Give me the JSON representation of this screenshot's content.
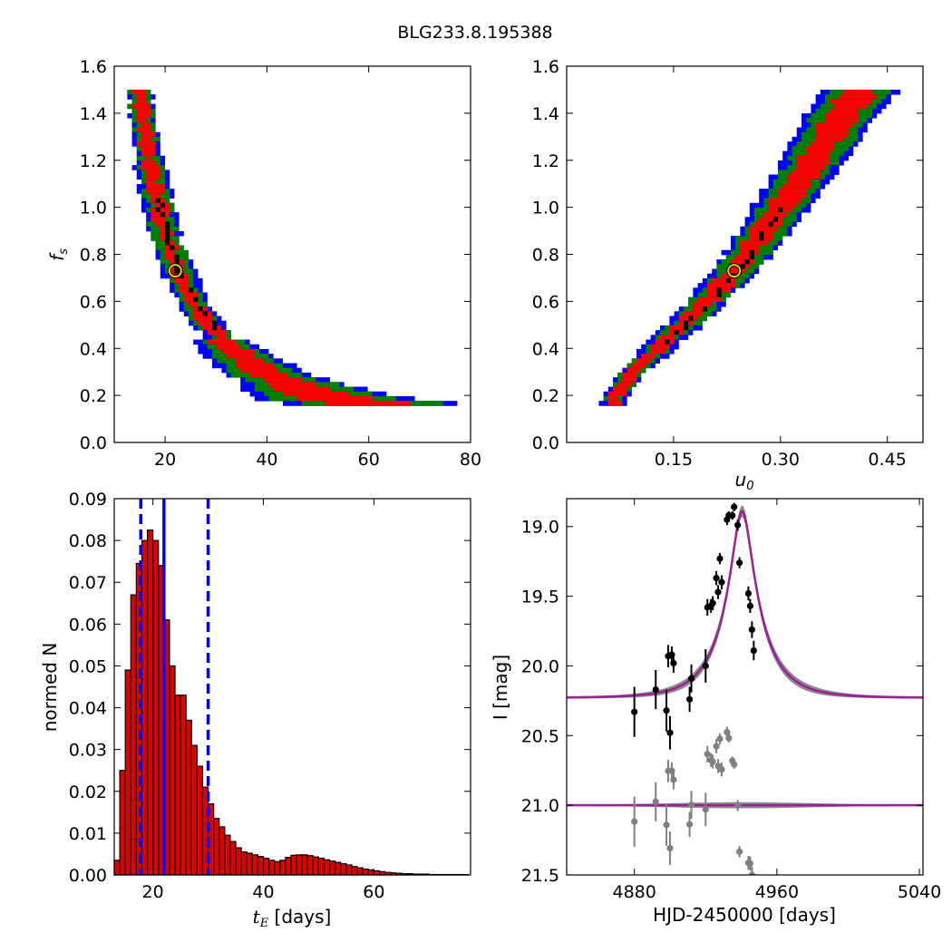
{
  "title": "BLG233.8.195388",
  "chart_data": [
    {
      "type": "heatmap",
      "panel": "top-left",
      "xlabel": "",
      "ylabel": "f_s",
      "xlim": [
        10,
        80
      ],
      "ylim": [
        0.0,
        1.6
      ],
      "xticks": [
        20,
        40,
        60,
        80
      ],
      "yticks": [
        0.0,
        0.2,
        0.4,
        0.6,
        0.8,
        1.0,
        1.2,
        1.4,
        1.6
      ],
      "tick_labels_x": [
        "20",
        "40",
        "60",
        "80"
      ],
      "tick_labels_y": [
        "0.0",
        "0.2",
        "0.4",
        "0.6",
        "0.8",
        "1.0",
        "1.2",
        "1.4",
        "1.6"
      ],
      "ridge_fs": [
        1.5,
        1.4,
        1.3,
        1.2,
        1.1,
        1.0,
        0.9,
        0.8,
        0.7,
        0.6,
        0.5,
        0.4,
        0.3,
        0.2,
        0.17
      ],
      "ridge_tE": [
        15.0,
        15.6,
        16.3,
        17.0,
        17.8,
        18.8,
        20.0,
        21.5,
        23.3,
        25.8,
        29.0,
        33.5,
        40.0,
        52.0,
        63.0
      ],
      "confidence_colors": [
        "#ff0000",
        "#008000",
        "#0000ff"
      ],
      "core_color": "#000000",
      "best_fit": {
        "x": 22,
        "y": 0.73
      },
      "grid": false
    },
    {
      "type": "heatmap",
      "panel": "top-right",
      "xlabel": "u_0",
      "ylabel": "",
      "xlim": [
        0.0,
        0.5
      ],
      "ylim": [
        0.0,
        1.6
      ],
      "xticks": [
        0.15,
        0.3,
        0.45
      ],
      "yticks": [
        0.0,
        0.2,
        0.4,
        0.6,
        0.8,
        1.0,
        1.2,
        1.4,
        1.6
      ],
      "tick_labels_x": [
        "0.15",
        "0.30",
        "0.45"
      ],
      "tick_labels_y": [
        "0.0",
        "0.2",
        "0.4",
        "0.6",
        "0.8",
        "1.0",
        "1.2",
        "1.4",
        "1.6"
      ],
      "ridge_fs": [
        0.17,
        0.3,
        0.5,
        0.73,
        1.0,
        1.2,
        1.4,
        1.5
      ],
      "ridge_u0": [
        0.063,
        0.09,
        0.16,
        0.235,
        0.3,
        0.345,
        0.385,
        0.41
      ],
      "confidence_colors": [
        "#ff0000",
        "#008000",
        "#0000ff"
      ],
      "core_color": "#000000",
      "best_fit": {
        "x": 0.235,
        "y": 0.73
      },
      "grid": false
    },
    {
      "type": "bar",
      "panel": "bottom-left",
      "xlabel": "t_E [days]",
      "ylabel": "normed N",
      "xlim": [
        13,
        77.5
      ],
      "ylim": [
        0.0,
        0.09
      ],
      "xticks": [
        20,
        40,
        60
      ],
      "yticks": [
        0.0,
        0.01,
        0.02,
        0.03,
        0.04,
        0.05,
        0.06,
        0.07,
        0.08,
        0.09
      ],
      "tick_labels_x": [
        "20",
        "40",
        "60"
      ],
      "tick_labels_y": [
        "0.00",
        "0.01",
        "0.02",
        "0.03",
        "0.04",
        "0.05",
        "0.06",
        "0.07",
        "0.08",
        "0.09"
      ],
      "bin_start": 13,
      "bin_width": 1,
      "values": [
        0.0035,
        0.025,
        0.049,
        0.067,
        0.0745,
        0.08,
        0.0825,
        0.08,
        0.074,
        0.061,
        0.05,
        0.043,
        0.043,
        0.037,
        0.031,
        0.026,
        0.021,
        0.017,
        0.0135,
        0.0115,
        0.0095,
        0.008,
        0.0065,
        0.0055,
        0.0052,
        0.0048,
        0.0044,
        0.004,
        0.0035,
        0.0032,
        0.0035,
        0.0042,
        0.0047,
        0.0048,
        0.0048,
        0.0046,
        0.0043,
        0.004,
        0.0036,
        0.0033,
        0.003,
        0.0027,
        0.0024,
        0.002,
        0.0017,
        0.0014,
        0.0012,
        0.001,
        0.0008,
        0.0006,
        0.0005,
        0.0004,
        0.0003,
        0.0003,
        0.0002,
        0.0002,
        0.0002,
        0.0001,
        0.0001,
        0.0001,
        0.0001,
        0.0001,
        0.0001,
        0.0001
      ],
      "bar_color": "#e00000",
      "median": 22,
      "interval": [
        17.8,
        30
      ],
      "line_color": "#0000ff",
      "grid": false
    },
    {
      "type": "line",
      "panel": "bottom-right",
      "xlabel": "HJD-2450000 [days]",
      "ylabel": "I [mag]",
      "xlim": [
        4842,
        5042
      ],
      "ylim": [
        21.5,
        18.8
      ],
      "y_inverted": true,
      "xticks": [
        4880,
        4960,
        5040
      ],
      "yticks": [
        19.0,
        19.5,
        20.0,
        20.5,
        21.0,
        21.5
      ],
      "tick_labels_x": [
        "4880",
        "4960",
        "5040"
      ],
      "tick_labels_y": [
        "19.0",
        "19.5",
        "20.0",
        "20.5",
        "21.0",
        "21.5"
      ],
      "model": {
        "t0": 4940.5,
        "tE": 22,
        "u0": 0.235,
        "fs": 0.73,
        "baseline_mag": 20.23,
        "color": "#9b1f9b"
      },
      "residual_baseline": 21.0,
      "data_points": [
        {
          "t": 4880,
          "mag": 20.33,
          "err": 0.18
        },
        {
          "t": 4892,
          "mag": 20.17,
          "err": 0.14
        },
        {
          "t": 4898,
          "mag": 20.32,
          "err": 0.15
        },
        {
          "t": 4899,
          "mag": 19.93,
          "err": 0.08
        },
        {
          "t": 4900,
          "mag": 20.48,
          "err": 0.12
        },
        {
          "t": 4901,
          "mag": 19.92,
          "err": 0.06
        },
        {
          "t": 4902,
          "mag": 19.98,
          "err": 0.07
        },
        {
          "t": 4911,
          "mag": 20.24,
          "err": 0.09
        },
        {
          "t": 4912,
          "mag": 20.09,
          "err": 0.1
        },
        {
          "t": 4920,
          "mag": 20.0,
          "err": 0.12
        },
        {
          "t": 4921,
          "mag": 19.58,
          "err": 0.06
        },
        {
          "t": 4923,
          "mag": 19.57,
          "err": 0.05
        },
        {
          "t": 4924,
          "mag": 19.55,
          "err": 0.05
        },
        {
          "t": 4926,
          "mag": 19.37,
          "err": 0.05
        },
        {
          "t": 4927,
          "mag": 19.47,
          "err": 0.05
        },
        {
          "t": 4928,
          "mag": 19.23,
          "err": 0.04
        },
        {
          "t": 4929,
          "mag": 19.4,
          "err": 0.05
        },
        {
          "t": 4932,
          "mag": 18.95,
          "err": 0.04
        },
        {
          "t": 4933,
          "mag": 18.92,
          "err": 0.03
        },
        {
          "t": 4935,
          "mag": 18.92,
          "err": 0.03
        },
        {
          "t": 4936,
          "mag": 18.86,
          "err": 0.03
        },
        {
          "t": 4938,
          "mag": 18.99,
          "err": 0.04
        },
        {
          "t": 4939,
          "mag": 19.26,
          "err": 0.04
        },
        {
          "t": 4944,
          "mag": 19.48,
          "err": 0.05
        },
        {
          "t": 4945,
          "mag": 19.57,
          "err": 0.05
        },
        {
          "t": 4946,
          "mag": 19.74,
          "err": 0.06
        },
        {
          "t": 4947,
          "mag": 19.89,
          "err": 0.07
        }
      ],
      "point_color": "#000000",
      "residual_color": "#808080",
      "grid": false
    }
  ]
}
